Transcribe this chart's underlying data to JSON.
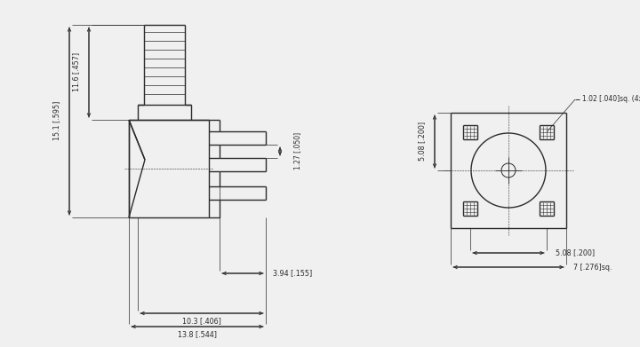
{
  "bg_color": "#f0f0f0",
  "line_color": "#2a2a2a",
  "dim_color": "#2a2a2a",
  "fig_width": 7.2,
  "fig_height": 3.91,
  "dpi": 100,
  "lw_main": 1.0,
  "lw_dim": 0.7,
  "lw_thin": 0.5,
  "fs_dim": 6.0
}
